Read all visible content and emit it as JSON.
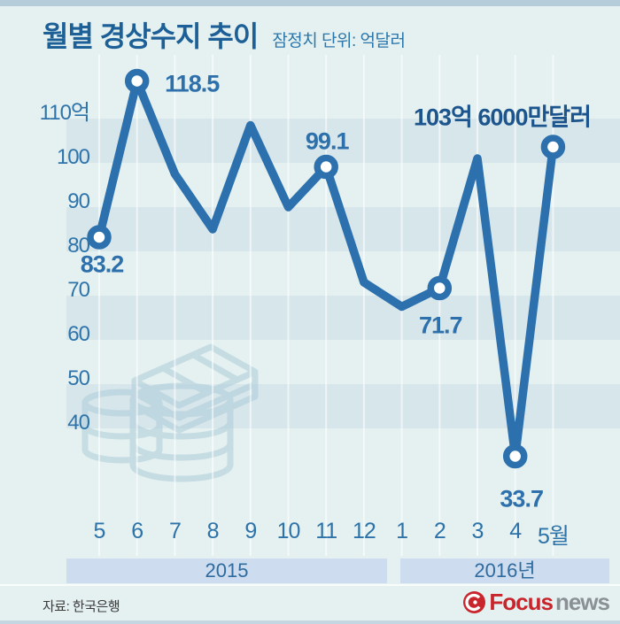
{
  "header": {
    "title": "월별 경상수지 추이",
    "subtitle": "잠정치  단위: 억달러"
  },
  "chart_data": {
    "type": "line",
    "title": "월별 경상수지 추이",
    "unit": "억달러",
    "categories": [
      "5",
      "6",
      "7",
      "8",
      "9",
      "10",
      "11",
      "12",
      "1",
      "2",
      "3",
      "4",
      "5월"
    ],
    "values": [
      83.2,
      118.5,
      97.5,
      85,
      108.5,
      90,
      99.1,
      73,
      67.5,
      71.7,
      101,
      33.7,
      103.6
    ],
    "marker_indices": [
      0,
      1,
      6,
      9,
      11,
      12
    ],
    "point_labels": [
      "83.2",
      "118.5",
      null,
      null,
      null,
      null,
      "99.1",
      null,
      null,
      "71.7",
      null,
      "33.7",
      null
    ],
    "annotation": "103억 6000만달러",
    "y_ticks": [
      "110억",
      "100",
      "90",
      "80",
      "70",
      "60",
      "50",
      "40"
    ],
    "y_tick_values": [
      110,
      100,
      90,
      80,
      70,
      60,
      50,
      40
    ],
    "ylim": [
      40,
      110
    ],
    "grid": "horizontal-bands-and-vertical-lines",
    "groups": [
      {
        "label": "2015",
        "from": 0,
        "to": 7
      },
      {
        "label": "2016년",
        "from": 8,
        "to": 12
      }
    ]
  },
  "colors": {
    "background": "#e4f1f0",
    "stripe_band": "#d7e6ea",
    "line": "#2c70ae",
    "marker_fill": "#ffffff",
    "title": "#1d5f97",
    "annotation": "#1c548e",
    "year_band": "#cddcee",
    "logo_red": "#c9252c",
    "logo_gray": "#8a9095"
  },
  "footer": {
    "source": "자료: 한국은행",
    "logo": {
      "brand": "Focus",
      "suffix": "news"
    }
  }
}
